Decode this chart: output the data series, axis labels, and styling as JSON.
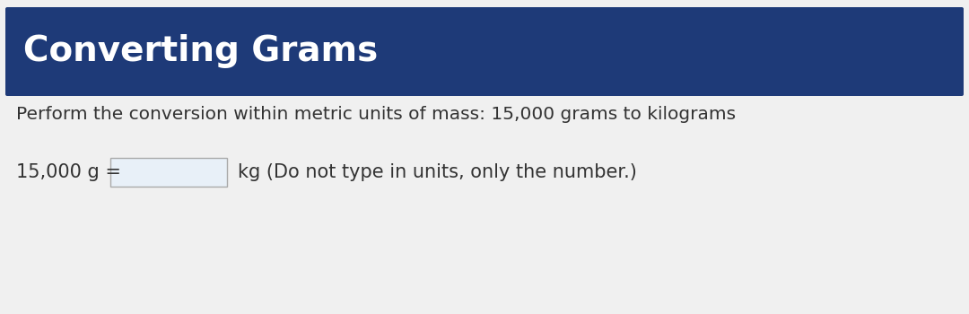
{
  "title": "Converting Grams",
  "title_bg_color": "#1e3a78",
  "title_text_color": "#ffffff",
  "body_bg_color": "#f0f0f0",
  "instruction_text": "Perform the conversion within metric units of mass: 15,000 grams to kilograms",
  "label_left": "15,000 g =",
  "label_right": "kg (Do not type in units, only the number.)",
  "input_box_color": "#e8f0f8",
  "input_box_border_color": "#aaaaaa",
  "text_color": "#333333",
  "title_fontsize": 28,
  "instruction_fontsize": 14.5,
  "question_fontsize": 15
}
